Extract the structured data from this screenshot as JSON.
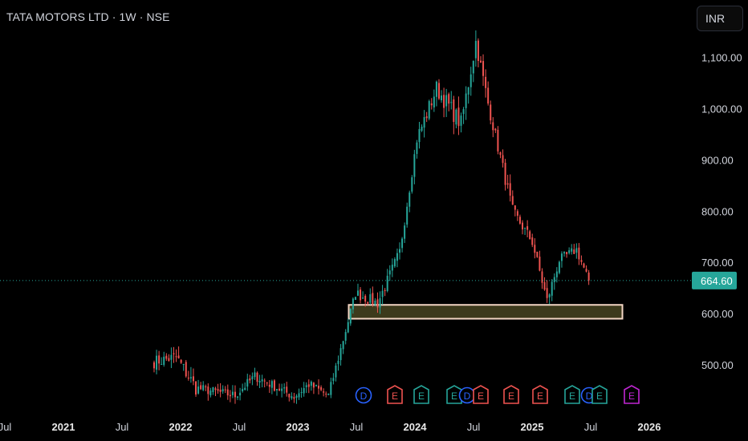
{
  "header": {
    "title": "TATA MOTORS LTD · 1W · NSE",
    "currency_button": "INR"
  },
  "colors": {
    "up": "#26a69a",
    "down": "#ef5350",
    "background": "#000000",
    "zone_fill": "#3d3a1c",
    "zone_border": "#f3d6c4",
    "price_tag": "#26a69a"
  },
  "chart_data": {
    "type": "candlestick",
    "title": "TATA MOTORS LTD · 1W · NSE",
    "ylim": [
      435,
      1185
    ],
    "y_ticks": [
      {
        "value": 500,
        "label": "500.00"
      },
      {
        "value": 600,
        "label": "600.00"
      },
      {
        "value": 700,
        "label": "700.00"
      },
      {
        "value": 800,
        "label": "800.00"
      },
      {
        "value": 900,
        "label": "900.00"
      },
      {
        "value": 1000,
        "label": "1,000.00"
      },
      {
        "value": 1100,
        "label": "1,100.00"
      }
    ],
    "x_ticks": [
      {
        "label": "Jul",
        "bold": false
      },
      {
        "label": "2021",
        "bold": true
      },
      {
        "label": "Jul",
        "bold": false
      },
      {
        "label": "2022",
        "bold": true
      },
      {
        "label": "Jul",
        "bold": false
      },
      {
        "label": "2023",
        "bold": true
      },
      {
        "label": "Jul",
        "bold": false
      },
      {
        "label": "2024",
        "bold": true
      },
      {
        "label": "Jul",
        "bold": false
      },
      {
        "label": "2025",
        "bold": true
      },
      {
        "label": "Jul",
        "bold": false
      },
      {
        "label": "2026",
        "bold": true
      }
    ],
    "last_price": {
      "value": 664.6,
      "label": "664.60"
    },
    "support_zone": {
      "low": 590,
      "high": 617
    },
    "event_markers": [
      {
        "label": "D",
        "kind": "dividend"
      },
      {
        "label": "E",
        "kind": "earnings-down"
      },
      {
        "label": "E",
        "kind": "earnings-up"
      },
      {
        "label": "E",
        "kind": "earnings-up"
      },
      {
        "label": "D",
        "kind": "dividend"
      },
      {
        "label": "E",
        "kind": "earnings-down"
      },
      {
        "label": "E",
        "kind": "earnings-down"
      },
      {
        "label": "E",
        "kind": "earnings-down"
      },
      {
        "label": "E",
        "kind": "earnings-up"
      },
      {
        "label": "D",
        "kind": "dividend"
      },
      {
        "label": "E",
        "kind": "earnings-up"
      },
      {
        "label": "E",
        "kind": "earnings-future"
      }
    ],
    "segments": [
      {
        "weeks": 10,
        "start": 505,
        "end": 515,
        "vol": 16
      },
      {
        "weeks": 8,
        "start": 515,
        "end": 455,
        "vol": 18
      },
      {
        "weeks": 16,
        "start": 455,
        "end": 440,
        "vol": 12
      },
      {
        "weeks": 8,
        "start": 440,
        "end": 478,
        "vol": 12
      },
      {
        "weeks": 16,
        "start": 478,
        "end": 438,
        "vol": 12
      },
      {
        "weeks": 6,
        "start": 438,
        "end": 462,
        "vol": 12
      },
      {
        "weeks": 8,
        "start": 462,
        "end": 440,
        "vol": 12
      },
      {
        "weeks": 11,
        "start": 440,
        "end": 640,
        "vol": 12
      },
      {
        "weeks": 9,
        "start": 640,
        "end": 620,
        "vol": 14
      },
      {
        "weeks": 9,
        "start": 620,
        "end": 720,
        "vol": 14
      },
      {
        "weeks": 7,
        "start": 720,
        "end": 940,
        "vol": 14
      },
      {
        "weeks": 8,
        "start": 940,
        "end": 1040,
        "vol": 20
      },
      {
        "weeks": 10,
        "start": 1040,
        "end": 970,
        "vol": 22
      },
      {
        "weeks": 6,
        "start": 970,
        "end": 1130,
        "vol": 22
      },
      {
        "weeks": 5,
        "start": 1130,
        "end": 1010,
        "vol": 18
      },
      {
        "weeks": 10,
        "start": 1010,
        "end": 800,
        "vol": 16
      },
      {
        "weeks": 8,
        "start": 800,
        "end": 740,
        "vol": 14
      },
      {
        "weeks": 6,
        "start": 740,
        "end": 625,
        "vol": 14
      },
      {
        "weeks": 5,
        "start": 625,
        "end": 705,
        "vol": 14
      },
      {
        "weeks": 7,
        "start": 705,
        "end": 725,
        "vol": 12
      },
      {
        "weeks": 5,
        "start": 725,
        "end": 664.6,
        "vol": 12
      }
    ]
  }
}
